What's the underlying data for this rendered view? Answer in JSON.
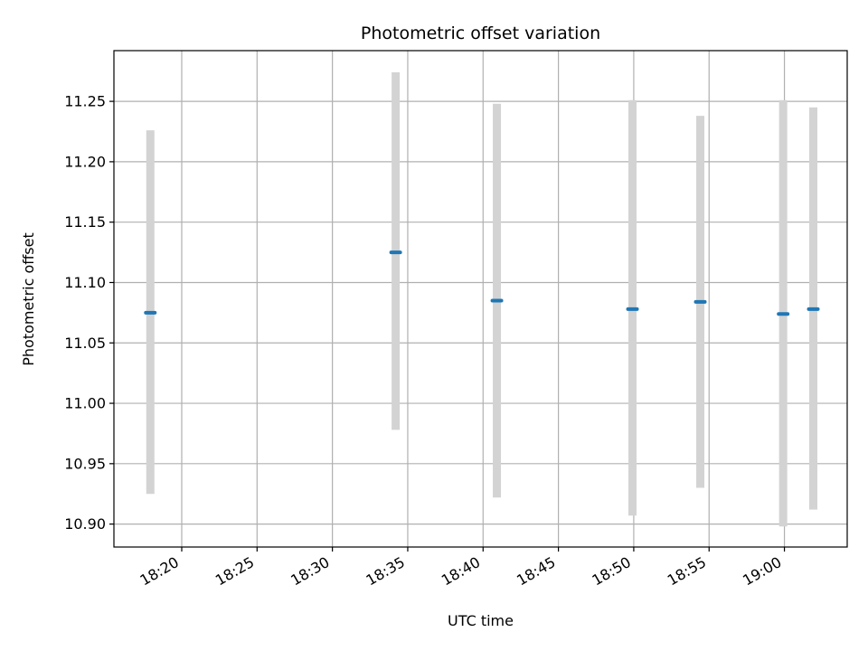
{
  "chart_data": {
    "type": "scatter",
    "title": "Photometric offset variation",
    "xlabel": "UTC time",
    "ylabel": "Photometric offset",
    "grid": true,
    "x_unit": "time",
    "xlim": [
      "18:15:30",
      "19:04:10"
    ],
    "ylim": [
      10.881,
      11.292
    ],
    "x_ticks": [
      "18:20",
      "18:25",
      "18:30",
      "18:35",
      "18:40",
      "18:45",
      "18:50",
      "18:55",
      "19:00"
    ],
    "y_ticks": [
      "10.90",
      "10.95",
      "11.00",
      "11.05",
      "11.10",
      "11.15",
      "11.20",
      "11.25"
    ],
    "points": [
      {
        "time": "18:17:55",
        "value": 11.075,
        "err_low": 10.925,
        "err_high": 11.226
      },
      {
        "time": "18:34:12",
        "value": 11.125,
        "err_low": 10.978,
        "err_high": 11.274
      },
      {
        "time": "18:40:55",
        "value": 11.085,
        "err_low": 10.922,
        "err_high": 11.248
      },
      {
        "time": "18:49:55",
        "value": 11.078,
        "err_low": 10.907,
        "err_high": 11.251
      },
      {
        "time": "18:54:25",
        "value": 11.084,
        "err_low": 10.93,
        "err_high": 11.238
      },
      {
        "time": "18:59:55",
        "value": 11.074,
        "err_low": 10.898,
        "err_high": 11.251
      },
      {
        "time": "19:01:55",
        "value": 11.078,
        "err_low": 10.912,
        "err_high": 11.245
      }
    ],
    "colors": {
      "marker": "#1f77b4",
      "errorbar": "#d3d3d3",
      "grid": "#b0b0b0",
      "axes": "#000000"
    }
  }
}
